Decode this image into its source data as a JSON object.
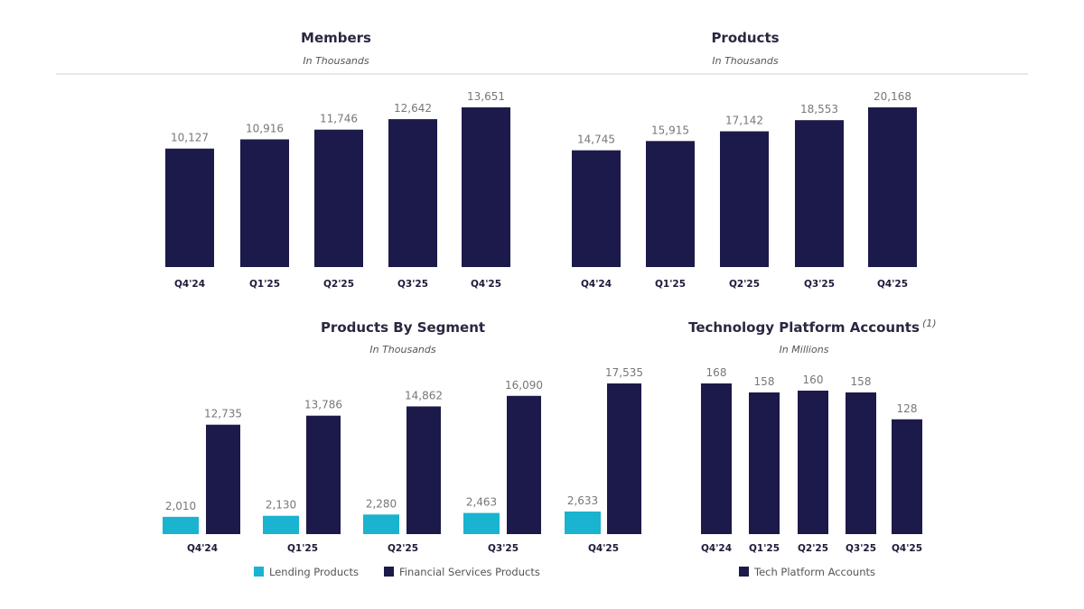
{
  "colors": {
    "primary": "#1c1a4a",
    "lending": "#1ab3d0",
    "divider": "#cccccc"
  },
  "chart_data": [
    {
      "type": "bar",
      "title": "Members",
      "subtitle": "In Thousands",
      "categories": [
        "Q4'24",
        "Q1'25",
        "Q2'25",
        "Q3'25",
        "Q4'25"
      ],
      "series": [
        {
          "name": "Members",
          "values": [
            10127,
            10916,
            11746,
            12642,
            13651
          ],
          "labels": [
            "10,127",
            "10,916",
            "11,746",
            "12,642",
            "13,651"
          ]
        }
      ],
      "ylim": [
        0,
        13651
      ]
    },
    {
      "type": "bar",
      "title": "Products",
      "subtitle": "In Thousands",
      "categories": [
        "Q4'24",
        "Q1'25",
        "Q2'25",
        "Q3'25",
        "Q4'25"
      ],
      "series": [
        {
          "name": "Products",
          "values": [
            14745,
            15915,
            17142,
            18553,
            20168
          ],
          "labels": [
            "14,745",
            "15,915",
            "17,142",
            "18,553",
            "20,168"
          ]
        }
      ],
      "ylim": [
        0,
        20168
      ]
    },
    {
      "type": "bar",
      "title": "Products By Segment",
      "subtitle": "In Thousands",
      "categories": [
        "Q4'24",
        "Q1'25",
        "Q2'25",
        "Q3'25",
        "Q4'25"
      ],
      "series": [
        {
          "name": "Lending Products",
          "values": [
            2010,
            2130,
            2280,
            2463,
            2633
          ],
          "labels": [
            "2,010",
            "2,130",
            "2,280",
            "2,463",
            "2,633"
          ]
        },
        {
          "name": "Financial Services Products",
          "values": [
            12735,
            13786,
            14862,
            16090,
            17535
          ],
          "labels": [
            "12,735",
            "13,786",
            "14,862",
            "16,090",
            "17,535"
          ]
        }
      ],
      "legend": "bottom",
      "ylim": [
        0,
        17535
      ]
    },
    {
      "type": "bar",
      "title": "Technology Platform Accounts",
      "title_note": "(1)",
      "subtitle": "In Millions",
      "categories": [
        "Q4'24",
        "Q1'25",
        "Q2'25",
        "Q3'25",
        "Q4'25"
      ],
      "series": [
        {
          "name": "Tech Platform Accounts",
          "values": [
            168,
            158,
            160,
            158,
            128
          ],
          "labels": [
            "168",
            "158",
            "160",
            "158",
            "128"
          ]
        }
      ],
      "legend": "bottom",
      "ylim": [
        0,
        168
      ]
    }
  ]
}
